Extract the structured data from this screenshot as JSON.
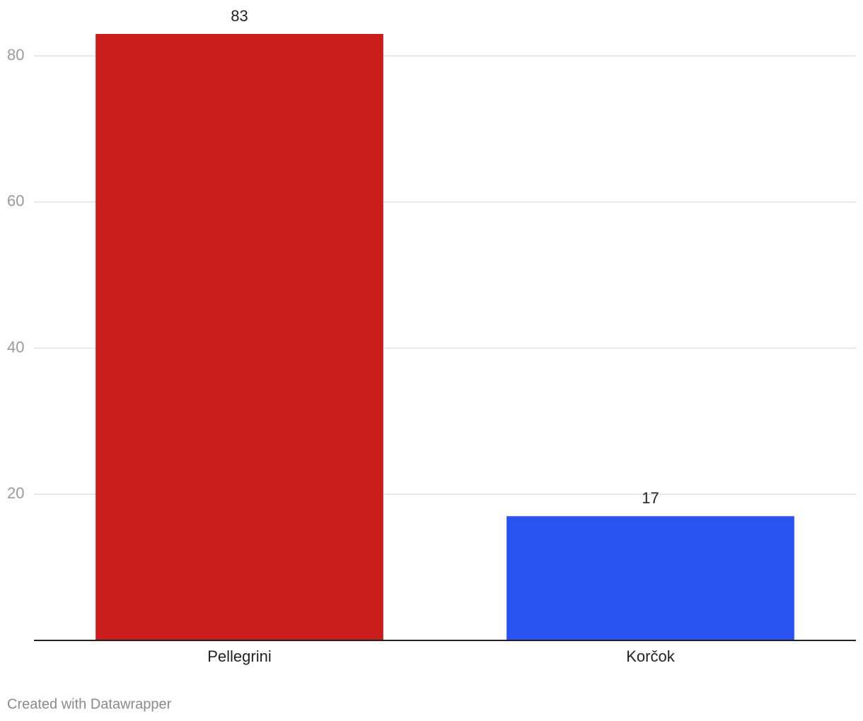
{
  "chart_data": {
    "type": "bar",
    "categories": [
      "Pellegrini",
      "Korčok"
    ],
    "values": [
      83,
      17
    ],
    "colors": [
      "#c81e1e",
      "#2a52ee"
    ],
    "ylim": [
      0,
      83
    ],
    "yticks": [
      20,
      40,
      60,
      80
    ],
    "grid": true,
    "credit": "Created with Datawrapper"
  }
}
